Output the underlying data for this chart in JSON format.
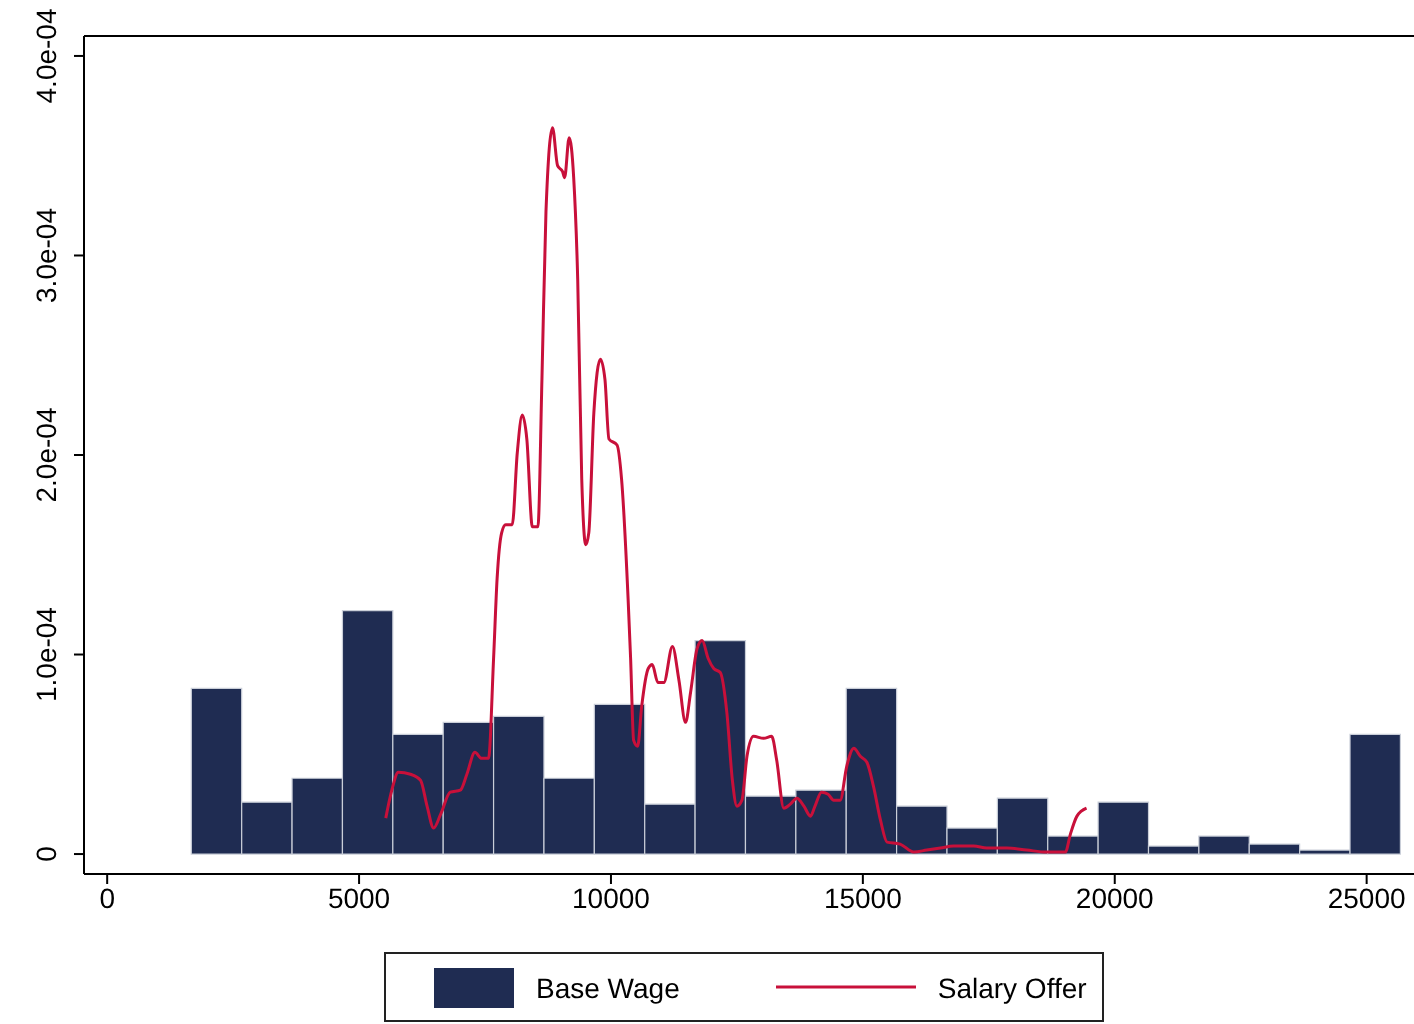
{
  "chart_data": {
    "type": "histogram",
    "bins": [
      1670,
      2670,
      3670,
      4670,
      5670,
      6670,
      7670,
      8670,
      9670,
      10670,
      11670,
      12670,
      13670,
      14670,
      15670,
      16670,
      17670,
      18670,
      19670,
      20670,
      21670,
      22670,
      23670,
      24670,
      25670
    ],
    "series": [
      {
        "name": "Base Wage",
        "color": "#1f2c52",
        "values": [
          8.3e-05,
          2.6e-05,
          3.8e-05,
          0.000122,
          6e-05,
          6.6e-05,
          6.9e-05,
          3.8e-05,
          7.5e-05,
          2.5e-05,
          0.000107,
          2.9e-05,
          3.2e-05,
          8.3e-05,
          2.4e-05,
          1.3e-05,
          2.8e-05,
          9e-06,
          2.6e-05,
          4e-06,
          9e-06,
          5e-06,
          2e-06,
          6e-05
        ]
      },
      {
        "name": "Salary Offer",
        "type": "line",
        "color": "#c8103a",
        "x": [
          5530,
          5650,
          5780,
          6020,
          6220,
          6350,
          6480,
          6620,
          6810,
          7010,
          7140,
          7300,
          7430,
          7570,
          7670,
          7740,
          7830,
          7910,
          8040,
          8140,
          8240,
          8330,
          8440,
          8550,
          8630,
          8710,
          8840,
          8940,
          9040,
          9080,
          9170,
          9260,
          9340,
          9420,
          9500,
          9560,
          9660,
          9790,
          9880,
          9960,
          10120,
          10210,
          10340,
          10390,
          10450,
          10530,
          10610,
          10740,
          10820,
          10930,
          11050,
          11220,
          11350,
          11480,
          11580,
          11710,
          11810,
          11930,
          12040,
          12170,
          12300,
          12410,
          12500,
          12600,
          12700,
          12830,
          13030,
          13190,
          13290,
          13430,
          13560,
          13690,
          13830,
          13960,
          14050,
          14180,
          14310,
          14420,
          14550,
          14680,
          14820,
          14950,
          15080,
          15210,
          15350,
          15480,
          15740,
          16010,
          16270,
          16540,
          16800,
          17200,
          17460,
          17860,
          18250,
          18650,
          19020,
          19120,
          19250,
          19440
        ],
        "values": [
          1.8e-05,
          3.2e-05,
          4.1e-05,
          4e-05,
          3.7e-05,
          2.4e-05,
          1.3e-05,
          2e-05,
          3.1e-05,
          3.2e-05,
          4e-05,
          5.1e-05,
          4.8e-05,
          4.8e-05,
          9.8e-05,
          0.000138,
          0.000161,
          0.000165,
          0.000165,
          0.000201,
          0.00022,
          0.000208,
          0.000164,
          0.000164,
          0.000238,
          0.000322,
          0.000364,
          0.000345,
          0.000342,
          0.000339,
          0.000359,
          0.000339,
          0.000288,
          0.000188,
          0.000155,
          0.000161,
          0.000221,
          0.000248,
          0.000238,
          0.000208,
          0.000205,
          0.000188,
          0.000128,
          9.8e-05,
          5.7e-05,
          5.4e-05,
          7.4e-05,
          9.3e-05,
          9.5e-05,
          8.6e-05,
          8.6e-05,
          0.000104,
          8.7e-05,
          6.6e-05,
          8.1e-05,
          0.000103,
          0.000107,
          9.8e-05,
          9.3e-05,
          9.1e-05,
          7.1e-05,
          3.7e-05,
          2.4e-05,
          2.7e-05,
          4.9e-05,
          5.9e-05,
          5.8e-05,
          5.9e-05,
          4.7e-05,
          2.3e-05,
          2.5e-05,
          2.8e-05,
          2.4e-05,
          1.9e-05,
          2.4e-05,
          3.1e-05,
          3e-05,
          2.7e-05,
          2.7e-05,
          4.4e-05,
          5.3e-05,
          4.9e-05,
          4.6e-05,
          3.4e-05,
          1.7e-05,
          6e-06,
          5e-06,
          1e-06,
          2e-06,
          3e-06,
          4e-06,
          4e-06,
          3e-06,
          3e-06,
          2e-06,
          1e-06,
          1e-06,
          1e-05,
          1.9e-05,
          2.3e-05
        ]
      }
    ],
    "xlim": [
      -460,
      25940
    ],
    "xticks": [
      0,
      5000,
      10000,
      15000,
      20000,
      25000
    ],
    "ylim": [
      -1e-05,
      0.00041
    ],
    "yticks": [
      0,
      {
        "value": 0.0001,
        "label": "1.0e-04"
      },
      {
        "value": 0.0002,
        "label": "2.0e-04"
      },
      {
        "value": 0.0003,
        "label": "3.0e-04"
      },
      {
        "value": 0.0004,
        "label": "4.0e-04"
      }
    ],
    "legend": "bottom",
    "marker": "none"
  }
}
